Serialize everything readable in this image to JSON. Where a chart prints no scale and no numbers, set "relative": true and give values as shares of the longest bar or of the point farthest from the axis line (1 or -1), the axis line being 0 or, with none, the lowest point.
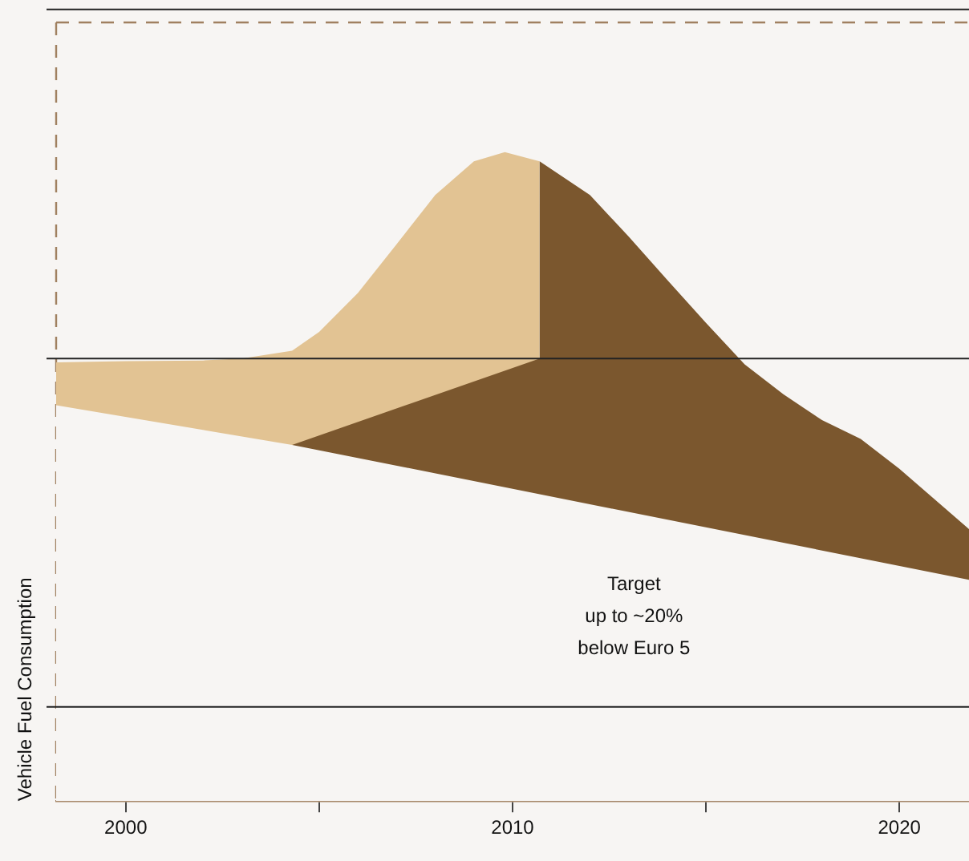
{
  "chart_data": {
    "type": "area",
    "relative": true,
    "ylabel": "Vehicle Fuel Consumption",
    "xlim": [
      1998.2,
      2021.8
    ],
    "xticks": [
      2000,
      {
        "value": 2005,
        "label": null
      },
      2010,
      {
        "value": 2015,
        "label": null
      },
      2020
    ],
    "tick_labels": "x",
    "grid": false,
    "legend": false,
    "series": [
      {
        "color": "#e2c393",
        "x": [
          1998.2,
          2000,
          2002,
          2003,
          2004.3,
          2005,
          2006,
          2007,
          2008,
          2009,
          2009.8,
          2010.7
        ],
        "values": [
          0.676,
          0.678,
          0.679,
          0.682,
          0.694,
          0.723,
          0.783,
          0.858,
          0.934,
          0.986,
          1.0,
          0.986
        ]
      },
      {
        "color": "#7b572e",
        "x": [
          2004.3,
          2010.7,
          2010.7,
          2012,
          2013,
          2014,
          2015,
          2016,
          2017,
          2018,
          2019,
          2020,
          2021.8
        ],
        "values": [
          0.549,
          0.682,
          0.986,
          0.934,
          0.87,
          0.803,
          0.737,
          0.673,
          0.627,
          0.587,
          0.558,
          0.512,
          0.419
        ]
      },
      {
        "color": "#f7f5f3",
        "x": [
          1998.2,
          2004.3,
          2021.8
        ],
        "values": [
          0.61,
          0.549,
          0.341
        ]
      }
    ],
    "ref_lines": [
      {
        "axis": "y",
        "value": 1.22,
        "color": "#222222"
      },
      {
        "axis": "y",
        "value": 0.682,
        "color": "#222222"
      },
      {
        "axis": "y",
        "value": 0.145,
        "color": "#222222"
      }
    ],
    "annotations": [
      "Target\nup to ~20%\nbelow Euro 5"
    ]
  }
}
